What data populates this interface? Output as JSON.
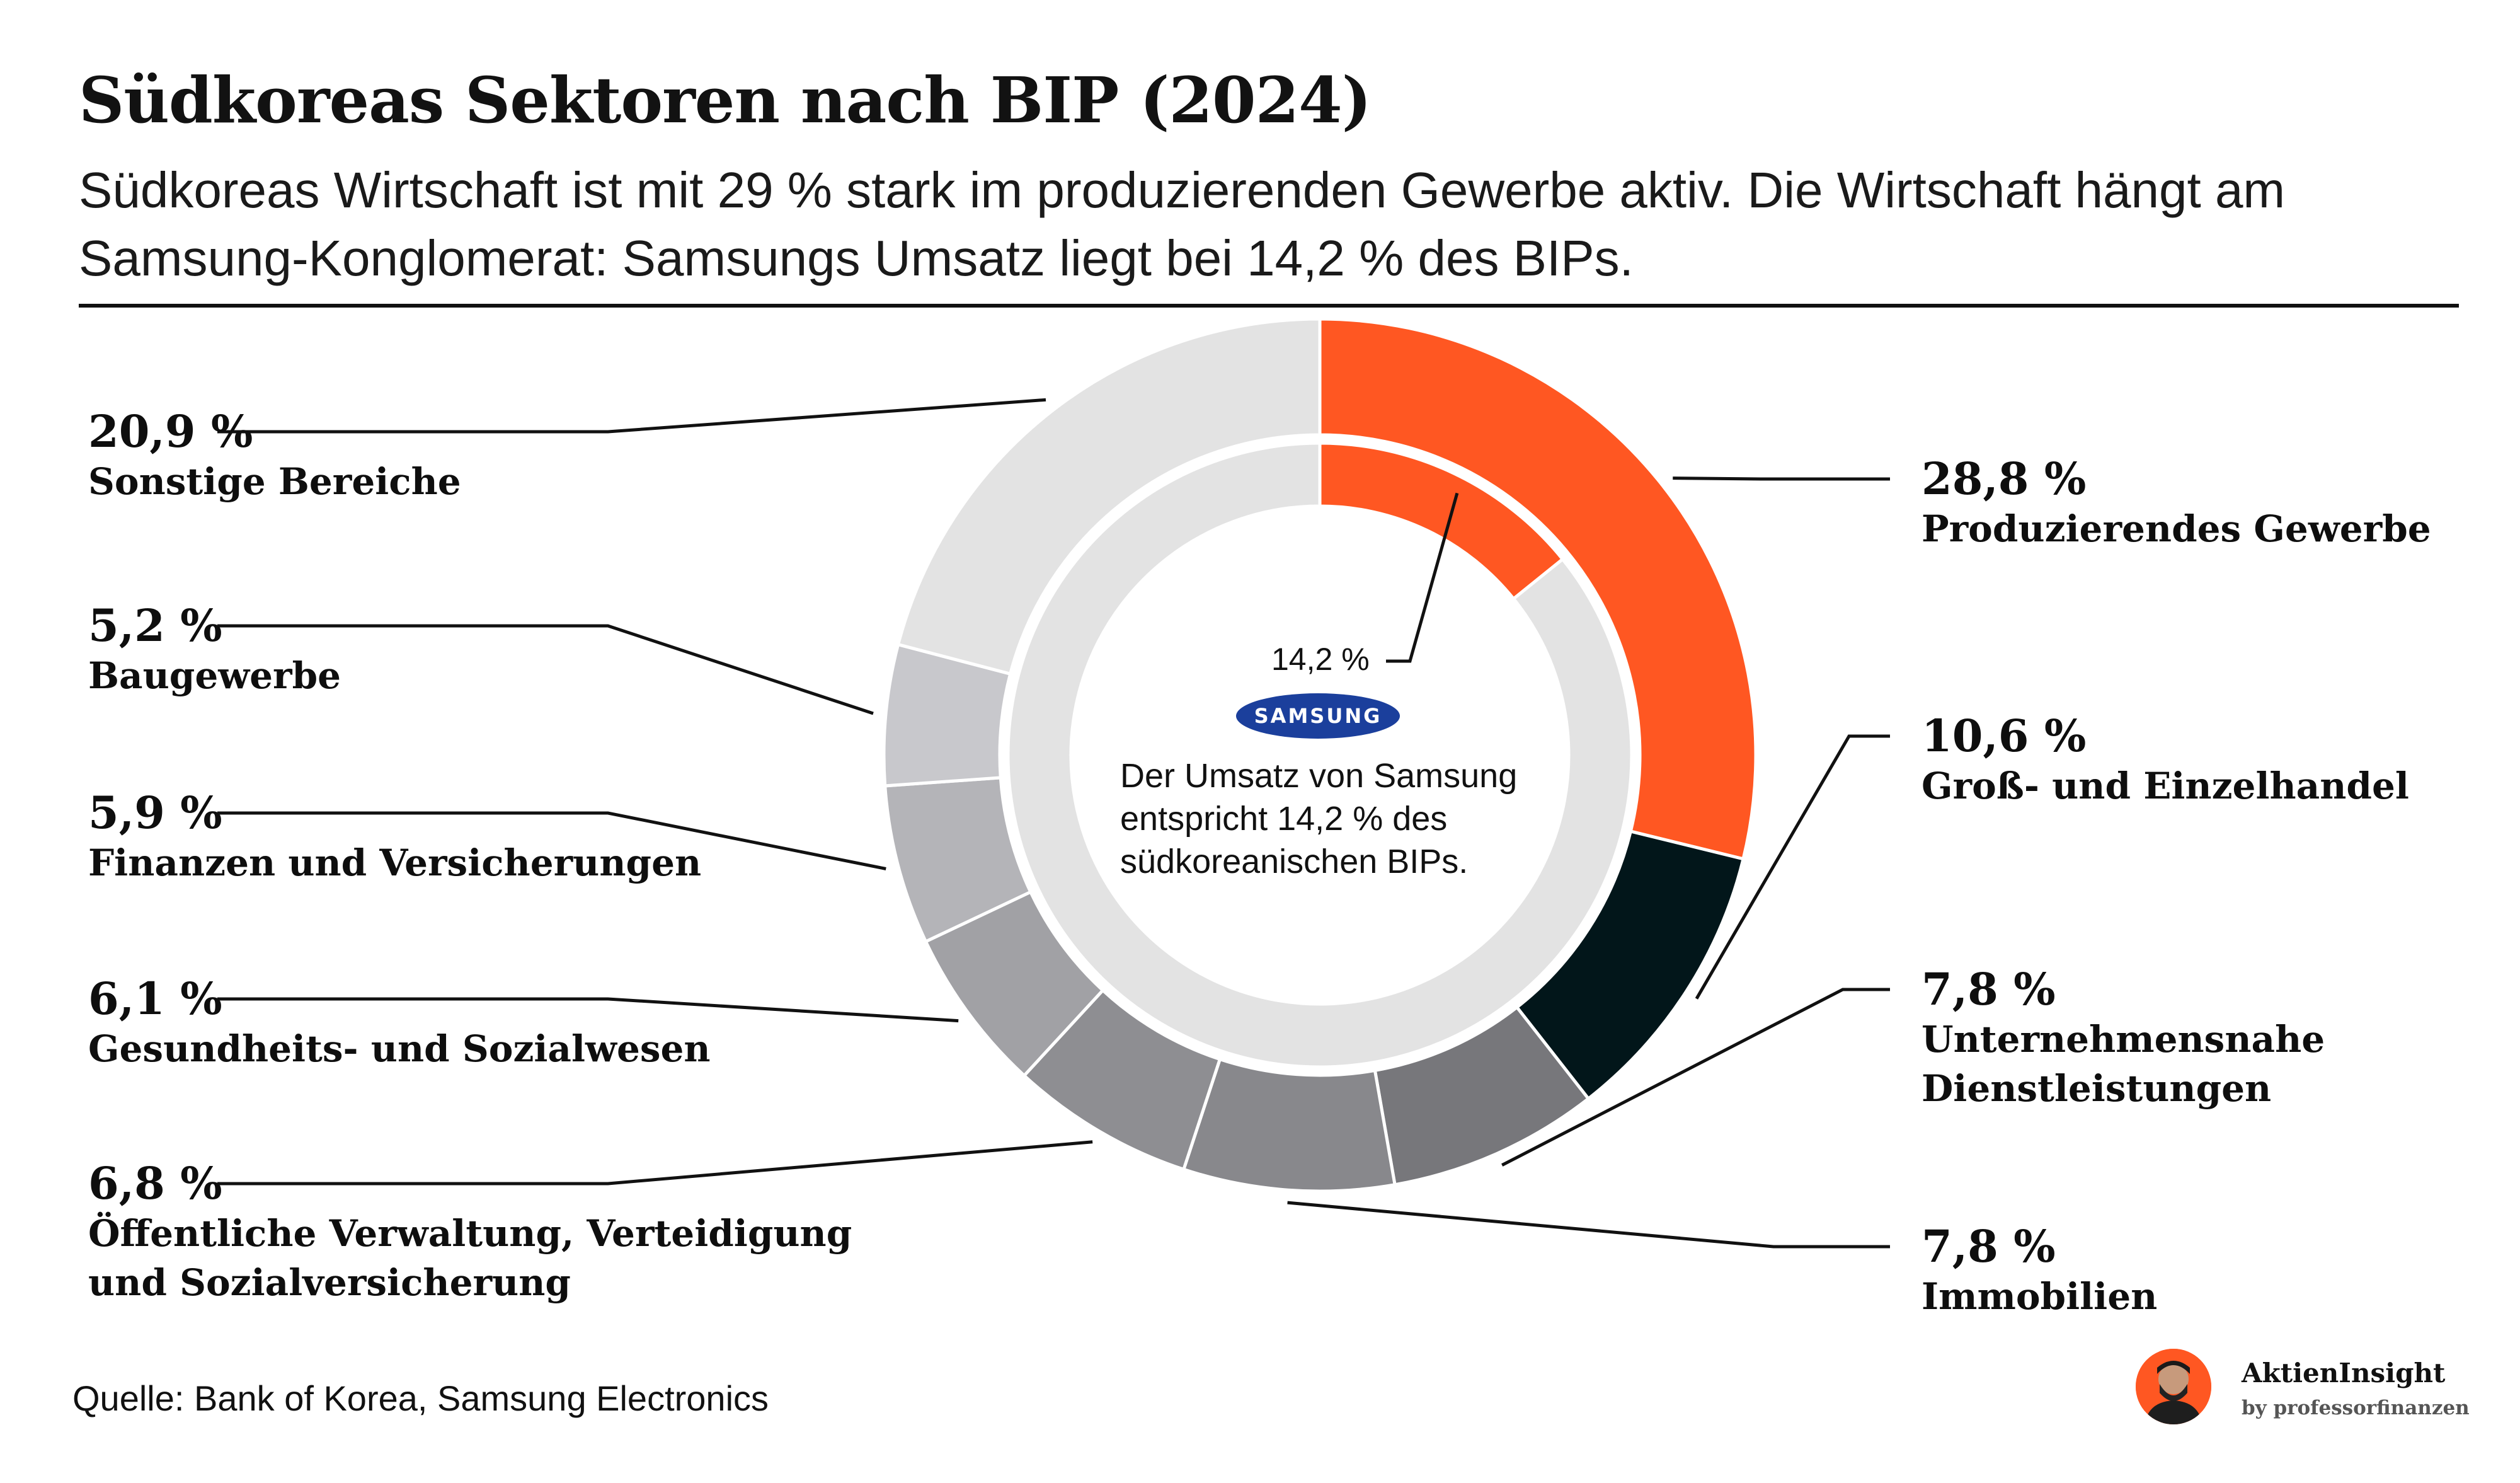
{
  "header": {
    "title": "Südkoreas Sektoren nach BIP (2024)",
    "subtitle": "Südkoreas Wirtschaft ist mit 29 % stark im produzierenden Gewerbe aktiv. Die Wirtschaft hängt am Samsung-Konglomerat: Samsungs Umsatz liegt bei 14,2 % des BIPs."
  },
  "chart_data": {
    "type": "pie",
    "title": "Südkoreas Sektoren nach BIP (2024)",
    "series": [
      {
        "slices": [
          {
            "label": "Produzierendes Gewerbe",
            "display": "28,8 %",
            "value": 28.8,
            "color": "#ff5722"
          },
          {
            "label": "Groß- und Einzelhandel",
            "display": "10,6 %",
            "value": 10.6,
            "color": "#02161a"
          },
          {
            "label": "Unternehmensnahe Dienstleistungen",
            "display": "7,8 %",
            "value": 7.8,
            "color": "#77777b"
          },
          {
            "label": "Immobilien",
            "display": "7,8 %",
            "value": 7.8,
            "color": "#88888c"
          },
          {
            "label": "Öffentliche Verwaltung, Verteidigung und Sozialversicherung",
            "display": "6,8 %",
            "value": 6.8,
            "color": "#8e8e92"
          },
          {
            "label": "Gesundheits- und Sozialwesen",
            "display": "6,1 %",
            "value": 6.1,
            "color": "#a1a1a5"
          },
          {
            "label": "Finanzen und Versicherungen",
            "display": "5,9 %",
            "value": 5.9,
            "color": "#b4b4b8"
          },
          {
            "label": "Baugewerbe",
            "display": "5,2 %",
            "value": 5.2,
            "color": "#c8c8cc"
          },
          {
            "label": "Sonstige Bereiche",
            "display": "20,9 %",
            "value": 20.9,
            "color": "#e3e3e3"
          }
        ]
      },
      {
        "name": "Samsung",
        "slices": [
          {
            "label": "Samsung",
            "display": "14,2 %",
            "value": 14.2,
            "color": "#ff5722"
          },
          {
            "label": "",
            "value": 85.8,
            "color": "#e3e3e3"
          }
        ]
      }
    ]
  },
  "center": {
    "samsung_pct": "14,2 %",
    "logo_text": "SAMSUNG",
    "text": "Der Umsatz von Samsung entspricht 14,2 % des südkoreanischen BIPs."
  },
  "footer": {
    "source": "Quelle: Bank of Korea, Samsung Electronics",
    "brand_name": "AktienInsight",
    "brand_by": "by professorfinanzen"
  }
}
